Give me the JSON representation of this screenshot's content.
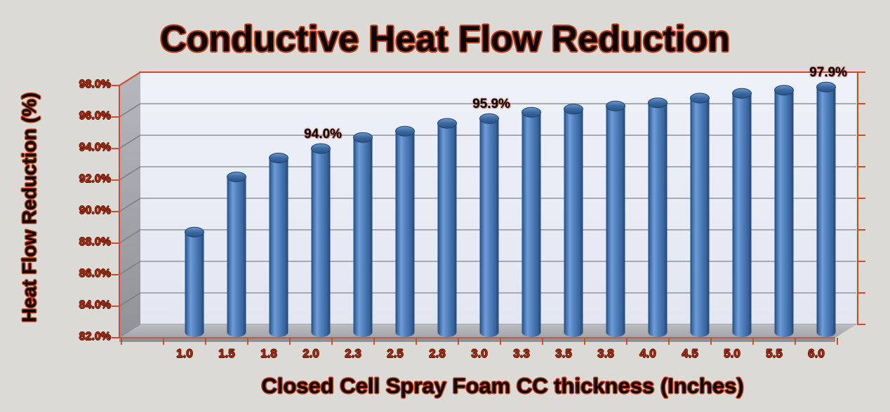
{
  "title": "Conductive Heat Flow Reduction",
  "y_axis": {
    "title": "Heat Flow Reduction (%)",
    "ticks": [
      "82.0%",
      "84.0%",
      "86.0%",
      "88.0%",
      "90.0%",
      "92.0%",
      "94.0%",
      "96.0%",
      "98.0%"
    ]
  },
  "x_axis": {
    "title": "Closed Cell Spray Foam CC thickness (Inches)"
  },
  "chart_data": {
    "type": "bar",
    "style": "3d-cylinder",
    "title": "Conductive Heat Flow Reduction",
    "xlabel": "Closed Cell Spray Foam CC thickness (Inches)",
    "ylabel": "Heat Flow Reduction (%)",
    "categories": [
      "1.0",
      "1.5",
      "1.8",
      "2.0",
      "2.3",
      "2.5",
      "2.8",
      "3.0",
      "3.3",
      "3.5",
      "3.8",
      "4.0",
      "4.5",
      "5.0",
      "5.5",
      "6.0"
    ],
    "values": [
      88.7,
      92.2,
      93.4,
      94.0,
      94.7,
      95.1,
      95.6,
      95.9,
      96.3,
      96.5,
      96.7,
      96.9,
      97.2,
      97.5,
      97.7,
      97.9
    ],
    "data_labels": [
      {
        "index": 3,
        "text": "94.0%"
      },
      {
        "index": 7,
        "text": "95.9%"
      },
      {
        "index": 15,
        "text": "97.9%"
      }
    ],
    "ylim": [
      82,
      98
    ],
    "y_tick_step": 2,
    "grid": true,
    "legend": false
  },
  "colors": {
    "background": "#dcdad5",
    "bar_fill": "#4f81bd",
    "bar_edge": "#1d4271",
    "axis_line": "#cf4a28",
    "gridline": "#8f949c",
    "wall_fill": "#e8ecf5",
    "floor_fill": "#aeafb2",
    "tick_text": "#a32b0d",
    "title_text": "#0b0402",
    "title_outline": "#bf3a14"
  }
}
